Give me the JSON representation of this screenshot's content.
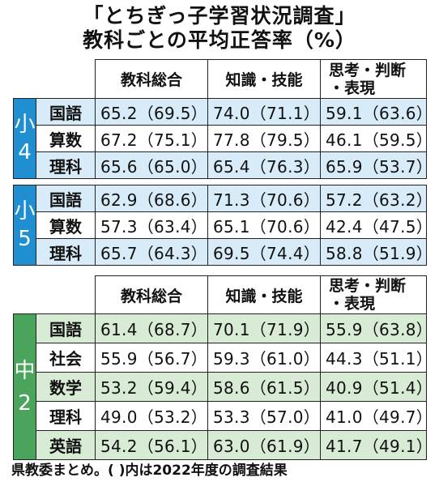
{
  "title_line1": "「とちぎっ子学習状況調査」",
  "title_line2": "教科ごとの平均正答率（%）",
  "columns": [
    "教科総合",
    "知識・技能",
    "思考・判断",
    "・表現"
  ],
  "footnote": "県教委まとめ。(  )内は2022年度の調査結果",
  "colors": {
    "elementary": "#1f8fd1",
    "elementary_row": "#d7ecf8",
    "middle": "#4aa45b",
    "middle_row": "#d8ecd5"
  },
  "chart_data": {
    "type": "table",
    "title": "「とちぎっ子学習状況調査」教科ごとの平均正答率（%）",
    "groups": [
      {
        "grade": "小4",
        "rows": [
          {
            "subject": "国語",
            "values": [
              "65.2（69.5）",
              "74.0（71.1）",
              "59.1（63.6）"
            ]
          },
          {
            "subject": "算数",
            "values": [
              "67.2（75.1）",
              "77.8（79.5）",
              "46.1（59.5）"
            ]
          },
          {
            "subject": "理科",
            "values": [
              "65.6（65.0）",
              "65.4（76.3）",
              "65.9（53.7）"
            ]
          }
        ]
      },
      {
        "grade": "小5",
        "rows": [
          {
            "subject": "国語",
            "values": [
              "62.9（68.6）",
              "71.3（70.6）",
              "57.2（63.2）"
            ]
          },
          {
            "subject": "算数",
            "values": [
              "57.3（63.4）",
              "65.1（70.6）",
              "42.4（47.5）"
            ]
          },
          {
            "subject": "理科",
            "values": [
              "65.7（64.3）",
              "69.5（74.4）",
              "58.8（51.9）"
            ]
          }
        ]
      },
      {
        "grade": "中2",
        "rows": [
          {
            "subject": "国語",
            "values": [
              "61.4（68.7）",
              "70.1（71.9）",
              "55.9（63.8）"
            ]
          },
          {
            "subject": "社会",
            "values": [
              "55.9（56.7）",
              "59.3（61.0）",
              "44.3（51.1）"
            ]
          },
          {
            "subject": "数学",
            "values": [
              "53.2（59.4）",
              "58.6（61.5）",
              "40.9（51.4）"
            ]
          },
          {
            "subject": "理科",
            "values": [
              "49.0（53.2）",
              "53.3（57.0）",
              "41.0（49.7）"
            ]
          },
          {
            "subject": "英語",
            "values": [
              "54.2（56.1）",
              "63.0（61.9）",
              "41.7（49.1）"
            ]
          }
        ]
      }
    ]
  }
}
